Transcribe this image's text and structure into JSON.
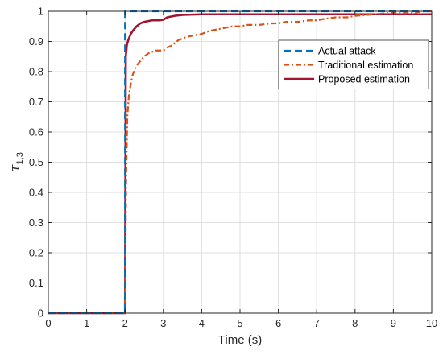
{
  "chart_data": {
    "type": "line",
    "xlabel": "Time (s)",
    "ylabel_main": "τ",
    "ylabel_sub": "1,3",
    "xlim": [
      0,
      10
    ],
    "ylim": [
      0,
      1
    ],
    "xticks": [
      0,
      1,
      2,
      3,
      4,
      5,
      6,
      7,
      8,
      9,
      10
    ],
    "xtick_labels": [
      "0",
      "1",
      "2",
      "3",
      "4",
      "5",
      "6",
      "7",
      "8",
      "9",
      "10"
    ],
    "yticks": [
      0,
      0.1,
      0.2,
      0.3,
      0.4,
      0.5,
      0.6,
      0.7,
      0.8,
      0.9,
      1
    ],
    "ytick_labels": [
      "0",
      "0.1",
      "0.2",
      "0.3",
      "0.4",
      "0.5",
      "0.6",
      "0.7",
      "0.8",
      "0.9",
      "1"
    ],
    "grid": true,
    "legend_position": "top-right",
    "series": [
      {
        "name": "Actual attack",
        "color": "#0072bd",
        "style": "dashed",
        "x": [
          0,
          2.0,
          2.0,
          10
        ],
        "y": [
          0,
          0,
          1,
          1
        ]
      },
      {
        "name": "Traditional estimation",
        "color": "#d95319",
        "style": "dashdot",
        "x": [
          0,
          2.0,
          2.03,
          2.06,
          2.1,
          2.15,
          2.2,
          2.3,
          2.4,
          2.5,
          2.6,
          2.7,
          2.8,
          2.9,
          3.0,
          3.05,
          3.1,
          3.2,
          3.3,
          3.4,
          3.5,
          3.6,
          3.8,
          4.0,
          4.2,
          4.4,
          4.6,
          4.8,
          5.0,
          5.2,
          5.5,
          5.8,
          6.0,
          6.2,
          6.5,
          6.8,
          7.0,
          7.2,
          7.5,
          7.8,
          8.0,
          8.5,
          9.0,
          9.5,
          9.8,
          10
        ],
        "y": [
          0,
          0,
          0.45,
          0.65,
          0.72,
          0.76,
          0.79,
          0.82,
          0.835,
          0.85,
          0.86,
          0.865,
          0.87,
          0.87,
          0.87,
          0.875,
          0.88,
          0.885,
          0.895,
          0.905,
          0.91,
          0.915,
          0.92,
          0.925,
          0.935,
          0.94,
          0.945,
          0.95,
          0.95,
          0.955,
          0.955,
          0.96,
          0.96,
          0.965,
          0.965,
          0.97,
          0.97,
          0.975,
          0.98,
          0.98,
          0.985,
          0.99,
          0.995,
          0.995,
          1.0,
          1.0
        ]
      },
      {
        "name": "Proposed estimation",
        "color": "#a2142f",
        "style": "solid",
        "x": [
          0,
          2.0,
          2.02,
          2.05,
          2.1,
          2.15,
          2.2,
          2.3,
          2.4,
          2.5,
          2.7,
          2.9,
          3.0,
          3.1,
          3.3,
          3.5,
          4.0,
          5.0,
          6.0,
          7.0,
          8.0,
          9.0,
          10
        ],
        "y": [
          0,
          0,
          0.85,
          0.89,
          0.91,
          0.925,
          0.935,
          0.95,
          0.96,
          0.965,
          0.97,
          0.97,
          0.972,
          0.98,
          0.985,
          0.988,
          0.99,
          0.99,
          0.99,
          0.99,
          0.99,
          0.99,
          0.99
        ]
      }
    ]
  }
}
